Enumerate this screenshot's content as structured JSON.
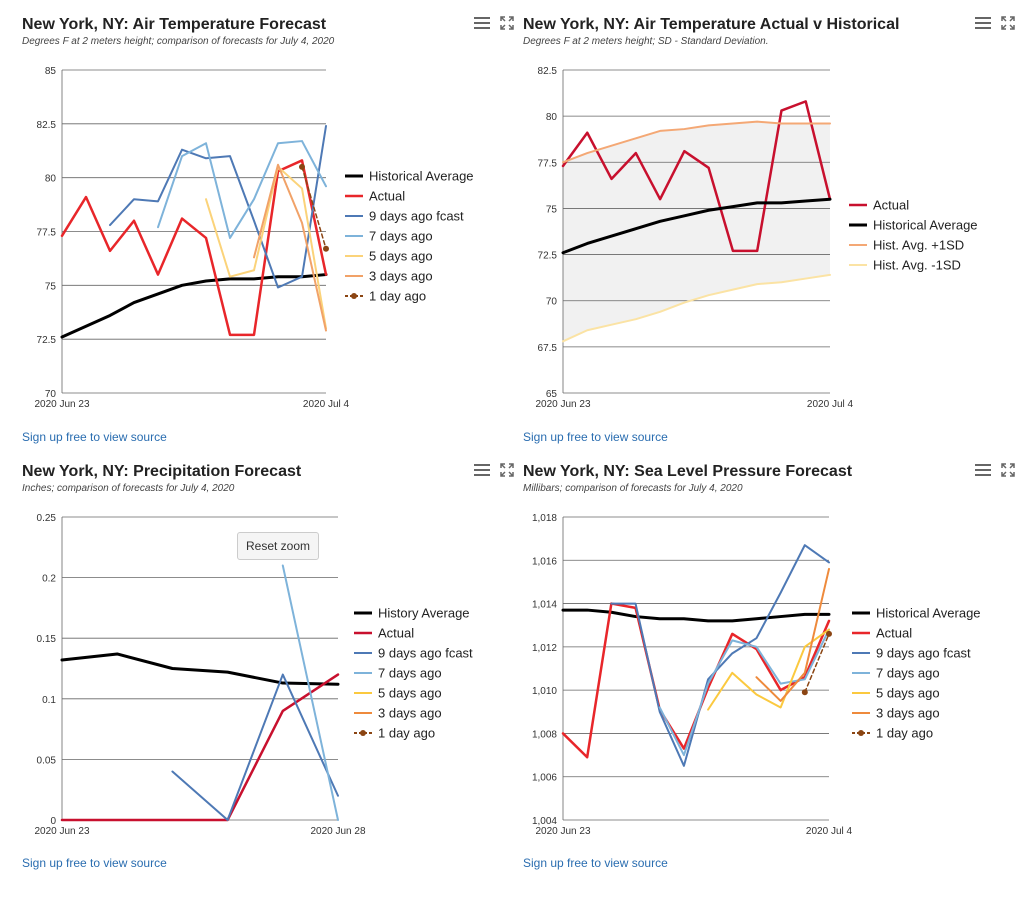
{
  "sign_up_text": "Sign up free to view source",
  "panels": [
    {
      "title": "New York, NY: Air Temperature Forecast",
      "subtitle": "Degrees F at 2 meters height; comparison of forecasts for July 4, 2020",
      "icons": [
        "menu-icon",
        "expand-icon"
      ]
    },
    {
      "title": "New York, NY: Air Temperature Actual v Historical",
      "subtitle": "Degrees F at 2 meters height; SD - Standard Deviation.",
      "icons": [
        "menu-icon",
        "expand-icon"
      ]
    },
    {
      "title": "New York, NY: Precipitation Forecast",
      "subtitle": "Inches; comparison of forecasts for July 4, 2020",
      "icons": [
        "menu-icon",
        "expand-icon"
      ],
      "reset_zoom_label": "Reset zoom"
    },
    {
      "title": "New York, NY: Sea Level Pressure Forecast",
      "subtitle": "Millibars; comparison of forecasts for July 4, 2020",
      "icons": [
        "menu-icon",
        "expand-icon"
      ]
    }
  ],
  "chart_data": [
    {
      "type": "line",
      "title": "New York, NY: Air Temperature Forecast",
      "x_range": [
        0,
        11
      ],
      "x_tick_labels": [
        {
          "x": 0,
          "label": "2020 Jun 23"
        },
        {
          "x": 11,
          "label": "2020 Jul 4"
        }
      ],
      "ylim": [
        70,
        85
      ],
      "yticks": [
        70,
        72.5,
        75,
        77.5,
        80,
        82.5,
        85
      ],
      "grid": true,
      "legend_position": "right",
      "series": [
        {
          "name": "Historical Average",
          "color": "#000000",
          "width": 3,
          "points": [
            [
              0,
              72.6
            ],
            [
              1,
              73.1
            ],
            [
              2,
              73.6
            ],
            [
              3,
              74.2
            ],
            [
              4,
              74.6
            ],
            [
              5,
              75.0
            ],
            [
              6,
              75.2
            ],
            [
              7,
              75.3
            ],
            [
              8,
              75.3
            ],
            [
              9,
              75.4
            ],
            [
              10,
              75.4
            ],
            [
              11,
              75.5
            ]
          ]
        },
        {
          "name": "Actual",
          "color": "#e8262a",
          "width": 2.5,
          "points": [
            [
              0,
              77.3
            ],
            [
              1,
              79.1
            ],
            [
              2,
              76.6
            ],
            [
              3,
              78.0
            ],
            [
              4,
              75.5
            ],
            [
              5,
              78.1
            ],
            [
              6,
              77.2
            ],
            [
              7,
              72.7
            ],
            [
              8,
              72.7
            ],
            [
              9,
              80.3
            ],
            [
              10,
              80.8
            ],
            [
              11,
              75.5
            ]
          ]
        },
        {
          "name": "9 days ago fcast",
          "color": "#4e79b5",
          "width": 2,
          "points": [
            [
              2,
              77.8
            ],
            [
              3,
              79.0
            ],
            [
              4,
              78.9
            ],
            [
              5,
              81.3
            ],
            [
              6,
              80.9
            ],
            [
              7,
              81.0
            ],
            [
              8,
              78.0
            ],
            [
              9,
              74.9
            ],
            [
              10,
              75.4
            ],
            [
              11,
              82.4
            ]
          ]
        },
        {
          "name": "7 days ago",
          "color": "#7eb3da",
          "width": 2,
          "points": [
            [
              4,
              77.7
            ],
            [
              5,
              81.0
            ],
            [
              6,
              81.6
            ],
            [
              7,
              77.2
            ],
            [
              8,
              79.0
            ],
            [
              9,
              81.6
            ],
            [
              10,
              81.7
            ],
            [
              11,
              79.6
            ]
          ]
        },
        {
          "name": "5 days ago",
          "color": "#fbd37a",
          "width": 2,
          "points": [
            [
              6,
              79.0
            ],
            [
              7,
              75.4
            ],
            [
              8,
              75.7
            ],
            [
              9,
              80.5
            ],
            [
              10,
              79.5
            ],
            [
              11,
              73.0
            ]
          ]
        },
        {
          "name": "3 days ago",
          "color": "#f1a268",
          "width": 2,
          "points": [
            [
              8,
              76.3
            ],
            [
              9,
              80.6
            ],
            [
              10,
              77.9
            ],
            [
              11,
              72.9
            ]
          ]
        },
        {
          "name": "1 day ago",
          "color": "#8b4513",
          "width": 1.5,
          "dashed": true,
          "markers": true,
          "points": [
            [
              10,
              80.5
            ],
            [
              11,
              76.7
            ]
          ]
        }
      ]
    },
    {
      "type": "line",
      "title": "New York, NY: Air Temperature Actual v Historical",
      "x_range": [
        0,
        11
      ],
      "x_tick_labels": [
        {
          "x": 0,
          "label": "2020 Jun 23"
        },
        {
          "x": 11,
          "label": "2020 Jul 4"
        }
      ],
      "ylim": [
        65,
        82.5
      ],
      "yticks": [
        65,
        67.5,
        70,
        72.5,
        75,
        77.5,
        80,
        82.5
      ],
      "grid": true,
      "legend_position": "right",
      "band": {
        "upper": "Hist. Avg. +1SD",
        "lower": "Hist. Avg. -1SD",
        "color": "#f1f1f1"
      },
      "series": [
        {
          "name": "Actual",
          "color": "#c8102e",
          "width": 2.5,
          "points": [
            [
              0,
              77.3
            ],
            [
              1,
              79.1
            ],
            [
              2,
              76.6
            ],
            [
              3,
              78.0
            ],
            [
              4,
              75.5
            ],
            [
              5,
              78.1
            ],
            [
              6,
              77.2
            ],
            [
              7,
              72.7
            ],
            [
              8,
              72.7
            ],
            [
              9,
              80.3
            ],
            [
              10,
              80.8
            ],
            [
              11,
              75.5
            ]
          ]
        },
        {
          "name": "Historical Average",
          "color": "#000000",
          "width": 3,
          "points": [
            [
              0,
              72.6
            ],
            [
              1,
              73.1
            ],
            [
              2,
              73.5
            ],
            [
              3,
              73.9
            ],
            [
              4,
              74.3
            ],
            [
              5,
              74.6
            ],
            [
              6,
              74.9
            ],
            [
              7,
              75.1
            ],
            [
              8,
              75.3
            ],
            [
              9,
              75.3
            ],
            [
              10,
              75.4
            ],
            [
              11,
              75.5
            ]
          ]
        },
        {
          "name": "Hist. Avg. +1SD",
          "color": "#f4a875",
          "width": 2,
          "points": [
            [
              0,
              77.5
            ],
            [
              1,
              78.0
            ],
            [
              2,
              78.4
            ],
            [
              3,
              78.8
            ],
            [
              4,
              79.2
            ],
            [
              5,
              79.3
            ],
            [
              6,
              79.5
            ],
            [
              7,
              79.6
            ],
            [
              8,
              79.7
            ],
            [
              9,
              79.6
            ],
            [
              10,
              79.6
            ],
            [
              11,
              79.6
            ]
          ]
        },
        {
          "name": "Hist. Avg. -1SD",
          "color": "#fbe3a4",
          "width": 2,
          "points": [
            [
              0,
              67.8
            ],
            [
              1,
              68.4
            ],
            [
              2,
              68.7
            ],
            [
              3,
              69.0
            ],
            [
              4,
              69.4
            ],
            [
              5,
              69.9
            ],
            [
              6,
              70.3
            ],
            [
              7,
              70.6
            ],
            [
              8,
              70.9
            ],
            [
              9,
              71.0
            ],
            [
              10,
              71.2
            ],
            [
              11,
              71.4
            ]
          ]
        }
      ]
    },
    {
      "type": "line",
      "title": "New York, NY: Precipitation Forecast",
      "x_range": [
        0,
        5
      ],
      "x_tick_labels": [
        {
          "x": 0,
          "label": "2020 Jun 23"
        },
        {
          "x": 5,
          "label": "2020 Jun 28"
        }
      ],
      "ylim": [
        0,
        0.25
      ],
      "yticks": [
        0,
        0.05,
        0.1,
        0.15,
        0.2,
        0.25
      ],
      "grid": true,
      "legend_position": "right",
      "series": [
        {
          "name": "History Average",
          "color": "#000000",
          "width": 3,
          "points": [
            [
              0,
              0.132
            ],
            [
              1,
              0.137
            ],
            [
              2,
              0.125
            ],
            [
              3,
              0.122
            ],
            [
              4,
              0.113
            ],
            [
              5,
              0.112
            ]
          ]
        },
        {
          "name": "Actual",
          "color": "#c8102e",
          "width": 2.5,
          "points": [
            [
              0,
              0
            ],
            [
              1,
              0
            ],
            [
              2,
              0
            ],
            [
              3,
              0
            ],
            [
              4,
              0.09
            ],
            [
              5,
              0.12
            ]
          ]
        },
        {
          "name": "9 days ago fcast",
          "color": "#4e79b5",
          "width": 2,
          "points": [
            [
              2,
              0.04
            ],
            [
              3,
              0
            ],
            [
              4,
              0.12
            ],
            [
              5,
              0.02
            ]
          ]
        },
        {
          "name": "7 days ago",
          "color": "#7eb3da",
          "width": 2,
          "points": [
            [
              4,
              0.21
            ],
            [
              5,
              0.0
            ]
          ]
        },
        {
          "name": "5 days ago",
          "color": "#fbc93f",
          "width": 2,
          "points": []
        },
        {
          "name": "3 days ago",
          "color": "#ee8a3c",
          "width": 2,
          "points": []
        },
        {
          "name": "1 day ago",
          "color": "#8b4513",
          "width": 1.5,
          "dashed": true,
          "markers": true,
          "points": []
        }
      ]
    },
    {
      "type": "line",
      "title": "New York, NY: Sea Level Pressure Forecast",
      "x_range": [
        0,
        11
      ],
      "x_tick_labels": [
        {
          "x": 0,
          "label": "2020 Jun 23"
        },
        {
          "x": 11,
          "label": "2020 Jul 4"
        }
      ],
      "ylim": [
        1004,
        1018
      ],
      "yticks": [
        1004,
        1006,
        1008,
        1010,
        1012,
        1014,
        1016,
        1018
      ],
      "ytick_labels": [
        "1,004",
        "1,006",
        "1,008",
        "1,010",
        "1,012",
        "1,014",
        "1,016",
        "1,018"
      ],
      "grid": true,
      "legend_position": "right",
      "series": [
        {
          "name": "Historical Average",
          "color": "#000000",
          "width": 3,
          "points": [
            [
              0,
              1013.7
            ],
            [
              1,
              1013.7
            ],
            [
              2,
              1013.6
            ],
            [
              3,
              1013.4
            ],
            [
              4,
              1013.3
            ],
            [
              5,
              1013.3
            ],
            [
              6,
              1013.2
            ],
            [
              7,
              1013.2
            ],
            [
              8,
              1013.3
            ],
            [
              9,
              1013.4
            ],
            [
              10,
              1013.5
            ],
            [
              11,
              1013.5
            ]
          ]
        },
        {
          "name": "Actual",
          "color": "#e8262a",
          "width": 2.5,
          "points": [
            [
              0,
              1008.0
            ],
            [
              1,
              1006.9
            ],
            [
              2,
              1014.0
            ],
            [
              3,
              1013.8
            ],
            [
              4,
              1009.1
            ],
            [
              5,
              1007.3
            ],
            [
              6,
              1010.1
            ],
            [
              7,
              1012.6
            ],
            [
              8,
              1011.9
            ],
            [
              9,
              1010.0
            ],
            [
              10,
              1010.6
            ],
            [
              11,
              1013.2
            ]
          ]
        },
        {
          "name": "9 days ago fcast",
          "color": "#4e79b5",
          "width": 2,
          "points": [
            [
              2,
              1014.0
            ],
            [
              3,
              1014.0
            ],
            [
              4,
              1009.0
            ],
            [
              5,
              1006.5
            ],
            [
              6,
              1010.5
            ],
            [
              7,
              1011.7
            ],
            [
              8,
              1012.4
            ],
            [
              9,
              1014.5
            ],
            [
              10,
              1016.7
            ],
            [
              11,
              1015.9
            ]
          ]
        },
        {
          "name": "7 days ago",
          "color": "#7eb3da",
          "width": 2,
          "points": [
            [
              4,
              1009.2
            ],
            [
              5,
              1007.0
            ],
            [
              6,
              1010.3
            ],
            [
              7,
              1012.3
            ],
            [
              8,
              1012.0
            ],
            [
              9,
              1010.3
            ],
            [
              10,
              1010.5
            ],
            [
              11,
              1012.8
            ]
          ]
        },
        {
          "name": "5 days ago",
          "color": "#fbc93f",
          "width": 2,
          "points": [
            [
              6,
              1009.1
            ],
            [
              7,
              1010.8
            ],
            [
              8,
              1009.8
            ],
            [
              9,
              1009.2
            ],
            [
              10,
              1012.0
            ],
            [
              11,
              1012.8
            ]
          ]
        },
        {
          "name": "3 days ago",
          "color": "#ee8a3c",
          "width": 2,
          "points": [
            [
              8,
              1010.6
            ],
            [
              9,
              1009.5
            ],
            [
              10,
              1010.8
            ],
            [
              11,
              1015.6
            ]
          ]
        },
        {
          "name": "1 day ago",
          "color": "#8b4513",
          "width": 1.5,
          "dashed": true,
          "markers": true,
          "points": [
            [
              10,
              1009.9
            ],
            [
              11,
              1012.6
            ]
          ]
        }
      ]
    }
  ]
}
